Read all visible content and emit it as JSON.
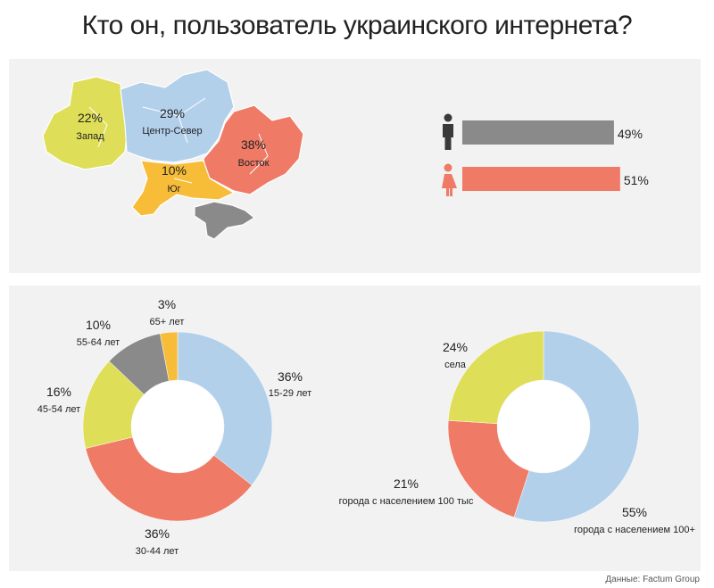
{
  "title": "Кто он, пользователь украинского интернета?",
  "source": "Данные: Factum Group",
  "colors": {
    "blue": "#b3d0eb",
    "red": "#ef7a66",
    "yellow": "#dede58",
    "orange": "#f7bd39",
    "gray": "#8a8a8a"
  },
  "regions": [
    {
      "name": "Запад",
      "pct": "22%"
    },
    {
      "name": "Центр-Север",
      "pct": "29%"
    },
    {
      "name": "Восток",
      "pct": "38%"
    },
    {
      "name": "Юг",
      "pct": "10%"
    }
  ],
  "chart_data": [
    {
      "type": "bar",
      "categories": [
        "male-icon",
        "female-icon"
      ],
      "values": [
        49,
        51
      ],
      "labels": [
        "49%",
        "51%"
      ],
      "colors": [
        "#8a8a8a",
        "#ef7a66"
      ]
    },
    {
      "type": "pie",
      "categories": [
        "15-29 лет",
        "30-44 лет",
        "45-54 лет",
        "55-64 лет",
        "65+ лет"
      ],
      "values": [
        36,
        36,
        16,
        10,
        3
      ],
      "labels": [
        "36%",
        "36%",
        "16%",
        "10%",
        "3%"
      ],
      "colors": [
        "#b3d0eb",
        "#ef7a66",
        "#dede58",
        "#8a8a8a",
        "#f7bd39"
      ]
    },
    {
      "type": "pie",
      "categories": [
        "города с населением  100+",
        "города с населением  100 тыс",
        "села"
      ],
      "values": [
        55,
        21,
        24
      ],
      "labels": [
        "55%",
        "21%",
        "24%"
      ],
      "colors": [
        "#b3d0eb",
        "#ef7a66",
        "#dede58"
      ]
    }
  ]
}
